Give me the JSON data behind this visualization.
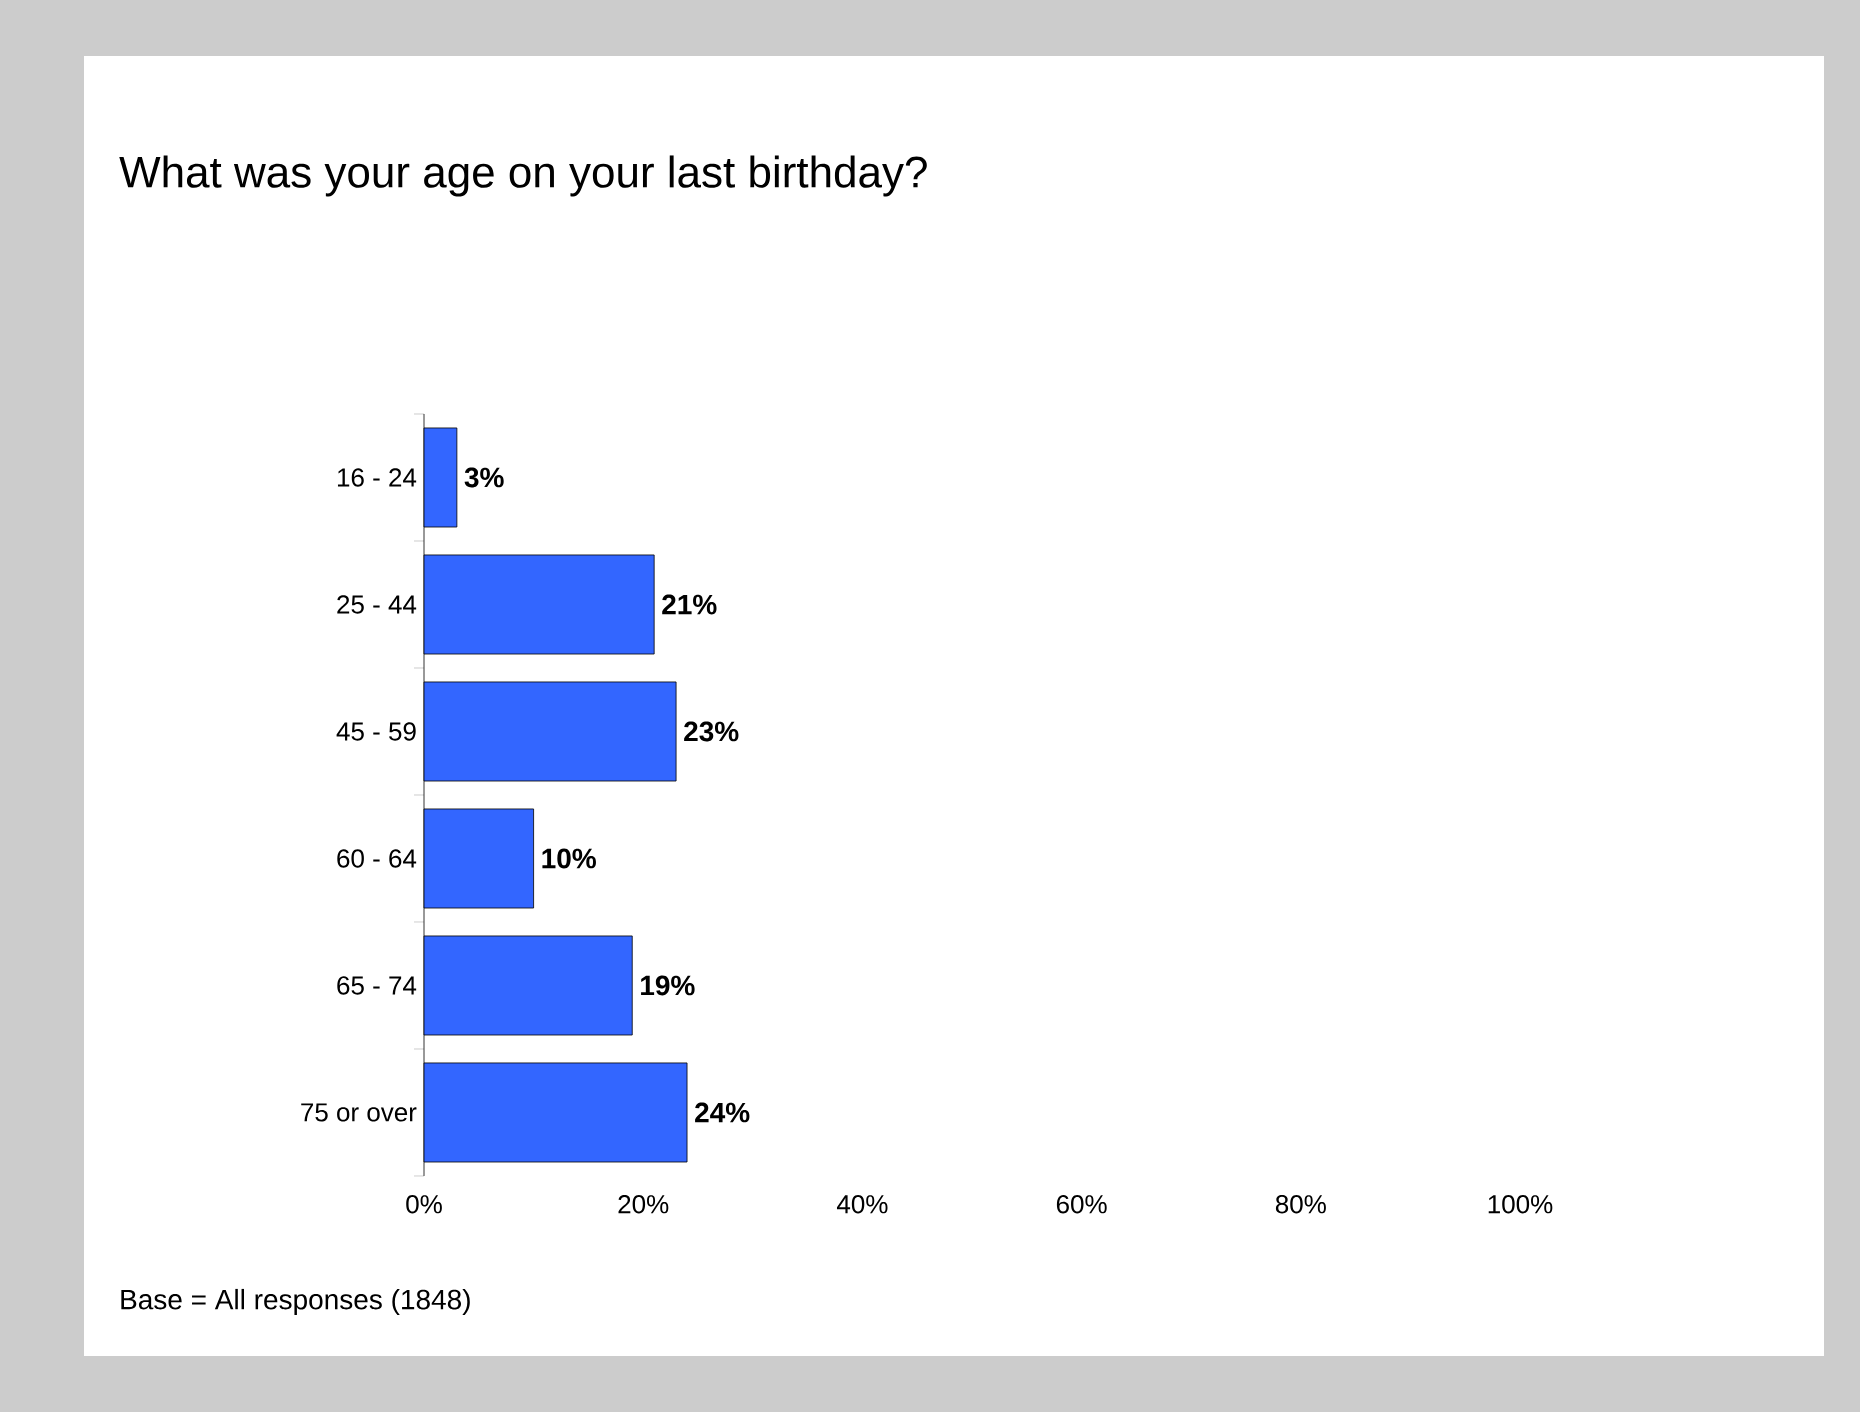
{
  "chart_data": {
    "type": "bar",
    "orientation": "horizontal",
    "title": "What was your age on your last birthday?",
    "categories": [
      "16 - 24",
      "25 - 44",
      "45 - 59",
      "60 - 64",
      "65 - 74",
      "75 or over"
    ],
    "values": [
      3,
      21,
      23,
      10,
      19,
      24
    ],
    "value_labels": [
      "3%",
      "21%",
      "23%",
      "10%",
      "19%",
      "24%"
    ],
    "color": "#3366ff",
    "xlim": [
      0,
      100
    ],
    "xticks": [
      {
        "value": 0,
        "label": "0%"
      },
      {
        "value": 20,
        "label": "20%"
      },
      {
        "value": 40,
        "label": "40%"
      },
      {
        "value": 60,
        "label": "60%"
      },
      {
        "value": 80,
        "label": "80%"
      },
      {
        "value": 100,
        "label": "100%"
      }
    ],
    "annotations": [
      "Base = All responses (1848)"
    ]
  }
}
